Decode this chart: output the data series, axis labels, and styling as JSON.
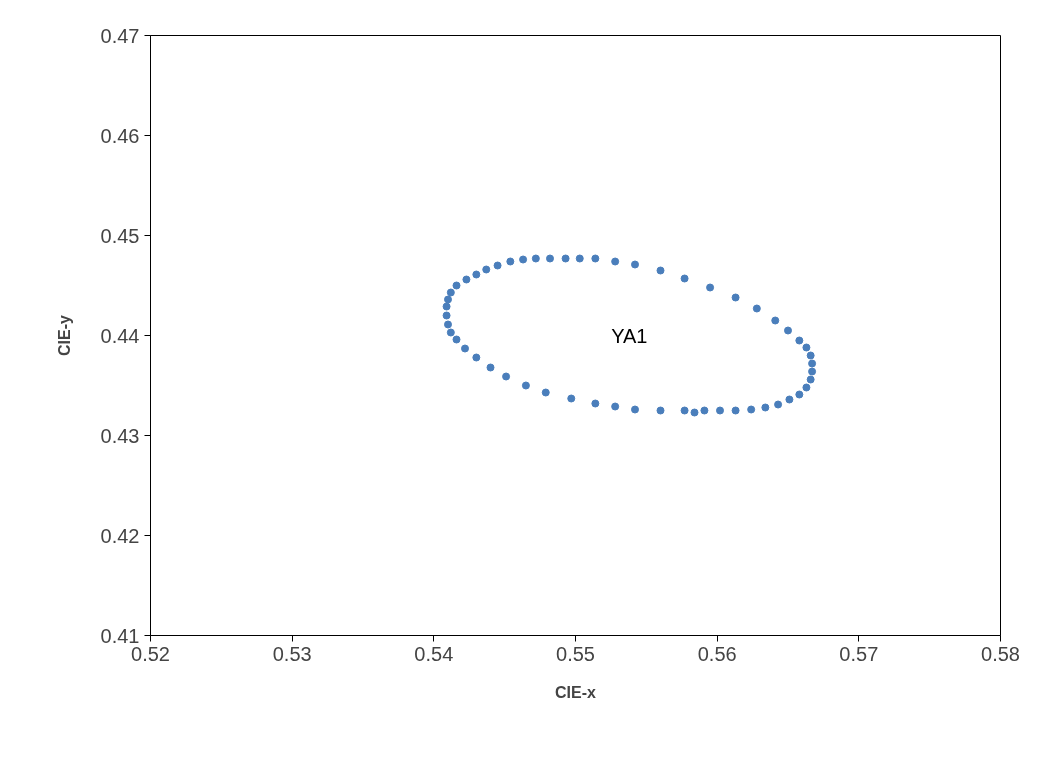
{
  "chart_data": {
    "type": "scatter",
    "xlabel": "CIE-x",
    "ylabel": "CIE-y",
    "xlim": [
      0.52,
      0.58
    ],
    "xticks": [
      0.52,
      0.53,
      0.54,
      0.55,
      0.56,
      0.57,
      0.58
    ],
    "ylim": [
      0.41,
      0.47
    ],
    "yticks": [
      0.41,
      0.42,
      0.43,
      0.44,
      0.45,
      0.46,
      0.47
    ],
    "grid": false,
    "marker": "circle",
    "annotations": [
      "YA1"
    ],
    "series": [
      {
        "color": "#4a7ebb",
        "x": [
          0.5409,
          0.541,
          0.5412,
          0.5416,
          0.5423,
          0.543,
          0.5437,
          0.5445,
          0.5454,
          0.5463,
          0.5472,
          0.5482,
          0.5493,
          0.5503,
          0.5514,
          0.5528,
          0.5542,
          0.556,
          0.5577,
          0.5595,
          0.5613,
          0.5628,
          0.5641,
          0.565,
          0.5658,
          0.5663,
          0.5666,
          0.5667,
          0.5667,
          0.5666,
          0.5663,
          0.5658,
          0.5651,
          0.5643,
          0.5634,
          0.5624,
          0.5613,
          0.5602,
          0.5591,
          0.5584,
          0.5577,
          0.556,
          0.5542,
          0.5528,
          0.5514,
          0.5497,
          0.5479,
          0.5465,
          0.5451,
          0.544,
          0.543,
          0.5422,
          0.5416,
          0.5412,
          0.541,
          0.5409
        ],
        "values": [
          0.4429,
          0.4436,
          0.4443,
          0.445,
          0.4456,
          0.4461,
          0.4466,
          0.447,
          0.4474,
          0.4476,
          0.4477,
          0.4477,
          0.4477,
          0.4477,
          0.4477,
          0.4474,
          0.4471,
          0.4465,
          0.4457,
          0.4448,
          0.4438,
          0.4427,
          0.4415,
          0.4405,
          0.4395,
          0.4388,
          0.438,
          0.4372,
          0.4364,
          0.4356,
          0.4348,
          0.4341,
          0.4336,
          0.4331,
          0.4328,
          0.4326,
          0.4325,
          0.4325,
          0.4325,
          0.4323,
          0.4325,
          0.4325,
          0.4326,
          0.4329,
          0.4332,
          0.4337,
          0.4343,
          0.435,
          0.4359,
          0.4368,
          0.4378,
          0.4387,
          0.4396,
          0.4403,
          0.4411,
          0.442
        ]
      }
    ]
  }
}
